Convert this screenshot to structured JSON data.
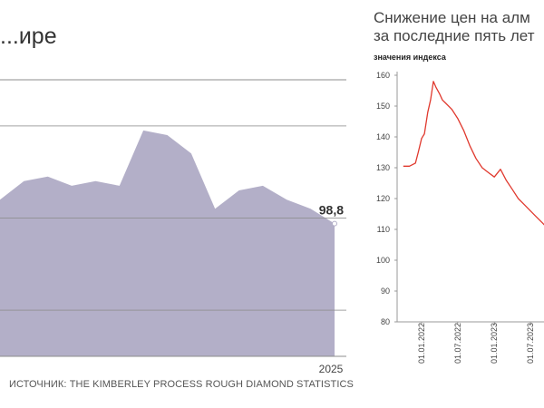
{
  "chart_data": [
    {
      "type": "area",
      "title": "...ире",
      "x_end_label": "2025",
      "values": [
        104,
        108,
        109,
        107,
        108,
        107,
        119,
        118,
        114,
        102,
        106,
        107,
        104,
        102,
        98.8
      ],
      "end_value_label": "98,8",
      "ylim": [
        70,
        130
      ],
      "gridlines": [
        80,
        100,
        120
      ],
      "source": "ИСТОЧНИК: THE KIMBERLEY PROCESS ROUGH DIAMOND STATISTICS",
      "fill_color": "#b3afc8",
      "grid_color": "#8c8c8c"
    },
    {
      "type": "line",
      "title_lines": [
        "Снижение цен на алм",
        "за последние пять лет"
      ],
      "ylabel": "значения индекса",
      "ylim": [
        80,
        160
      ],
      "yticks": [
        "80",
        "90",
        "100",
        "110",
        "120",
        "130",
        "140",
        "150",
        "160"
      ],
      "xticks": [
        "01.01.2022",
        "01.07.2022",
        "01.01.2023",
        "01.07.2023"
      ],
      "x": [
        "2021-10-01",
        "2021-11-01",
        "2021-12-01",
        "2021-12-15",
        "2022-01-01",
        "2022-01-15",
        "2022-02-01",
        "2022-02-15",
        "2022-03-01",
        "2022-03-15",
        "2022-04-01",
        "2022-04-15",
        "2022-05-01",
        "2022-06-01",
        "2022-07-01",
        "2022-08-01",
        "2022-09-01",
        "2022-10-01",
        "2022-11-01",
        "2022-12-01",
        "2023-01-01",
        "2023-02-01",
        "2023-03-01",
        "2023-04-01",
        "2023-05-01",
        "2023-06-01",
        "2023-07-01",
        "2023-08-01",
        "2023-09-01",
        "2023-10-01"
      ],
      "values": [
        130.5,
        130.5,
        131.5,
        135,
        139.5,
        141,
        148,
        152,
        158,
        156,
        154,
        152,
        151,
        149,
        146,
        142,
        137,
        133,
        130,
        128.5,
        127,
        129.5,
        126,
        123,
        120,
        118,
        116,
        114,
        112,
        110
      ],
      "line_color": "#e0392e"
    }
  ]
}
